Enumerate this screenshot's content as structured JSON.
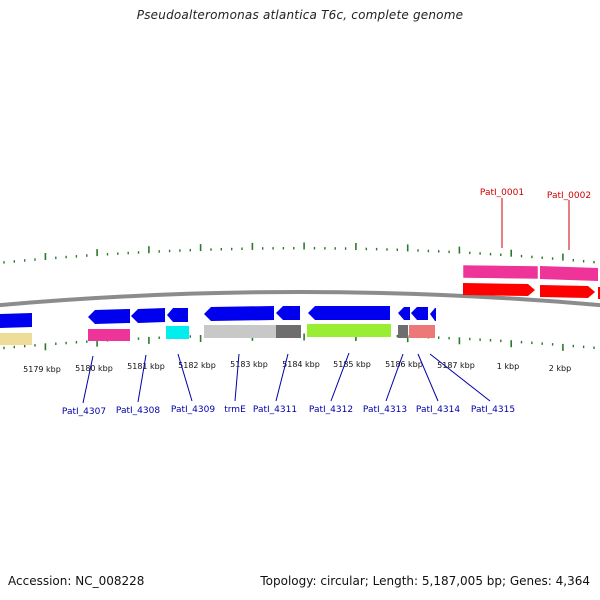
{
  "title": "Pseudoalteromonas atlantica T6c, complete genome",
  "accession_text": "Accession: NC_008228",
  "summary_text": "Topology: circular; Length: 5,187,005 bp; Genes: 4,364",
  "colors": {
    "backbone": "#8c8c8c",
    "cds_forward": "#ff0000",
    "cds_reverse": "#0000ee",
    "label_forward": "#cc0000",
    "label_reverse": "#0000aa",
    "tick": "#2b7a2b",
    "magenta": "#ee3399",
    "yellow": "#eedd99",
    "cyan": "#00eeee",
    "light_gray": "#c8c8c8",
    "dark_gray": "#6e6e6e",
    "lime": "#99ee33",
    "salmon": "#ee7777"
  },
  "scale_labels": [
    "5179 kbp",
    "5180 kbp",
    "5181 kbp",
    "5182 kbp",
    "5183 kbp",
    "5184 kbp",
    "5185 kbp",
    "5186 kbp",
    "5187 kbp",
    "1 kbp",
    "2 kbp"
  ],
  "gene_labels_forward": [
    "PatI_0001",
    "PatI_0002"
  ],
  "gene_labels_reverse": [
    "PatI_4307",
    "PatI_4308",
    "PatI_4309",
    "trmE",
    "PatI_4311",
    "PatI_4312",
    "PatI_4313",
    "PatI_4314",
    "PatI_4315"
  ]
}
